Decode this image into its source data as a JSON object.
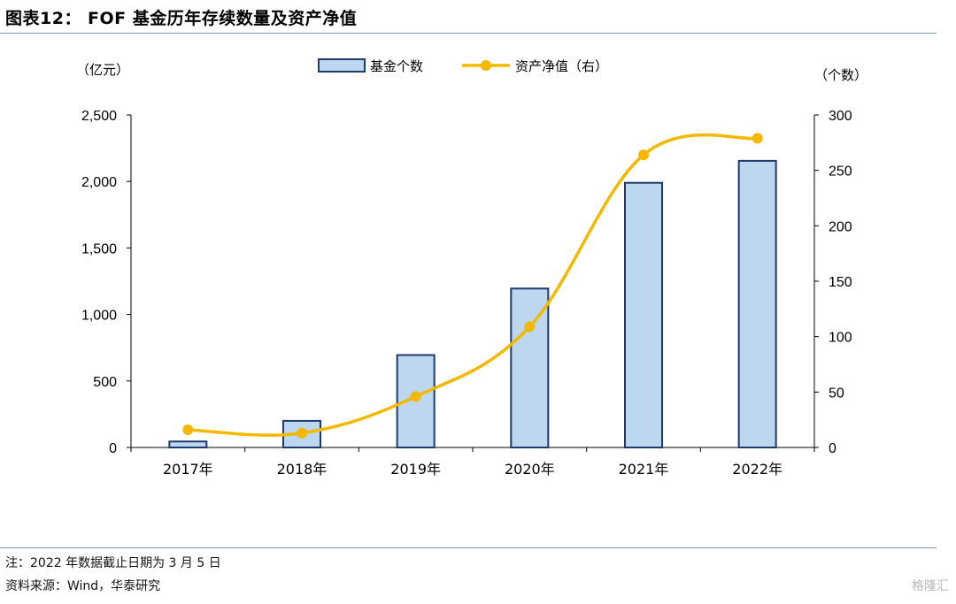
{
  "header": {
    "title": "图表12： FOF 基金历年存续数量及资产净值"
  },
  "notes": {
    "note": "注：2022 年数据截止日期为 3 月 5 日",
    "source": "资料来源：Wind，华泰研究"
  },
  "watermark": "格隆汇",
  "colors": {
    "bar_fill": "#bdd7ee",
    "bar_stroke": "#1f3a6e",
    "line": "#f5b800",
    "rule": "#7f95b1"
  },
  "chart_data": {
    "type": "bar+line",
    "categories": [
      "2017年",
      "2018年",
      "2019年",
      "2020年",
      "2021年",
      "2022年"
    ],
    "series": [
      {
        "name": "基金个数",
        "type": "bar",
        "axis": "left",
        "values": [
          45,
          200,
          695,
          1195,
          1990,
          2155
        ]
      },
      {
        "name": "资产净值（右）",
        "type": "line",
        "axis": "right",
        "values": [
          16,
          13,
          46,
          109,
          264,
          279
        ]
      }
    ],
    "left_axis": {
      "unit": "（亿元）",
      "min": 0,
      "max": 2500,
      "ticks": [
        0,
        500,
        1000,
        1500,
        2000,
        2500
      ],
      "tick_labels": [
        "0",
        "500",
        "1,000",
        "1,500",
        "2,000",
        "2,500"
      ]
    },
    "right_axis": {
      "unit": "（个数）",
      "min": 0,
      "max": 300,
      "ticks": [
        0,
        50,
        100,
        150,
        200,
        250,
        300
      ],
      "tick_labels": [
        "0",
        "50",
        "100",
        "150",
        "200",
        "250",
        "300"
      ]
    },
    "legend": "top-center",
    "grid": false
  }
}
